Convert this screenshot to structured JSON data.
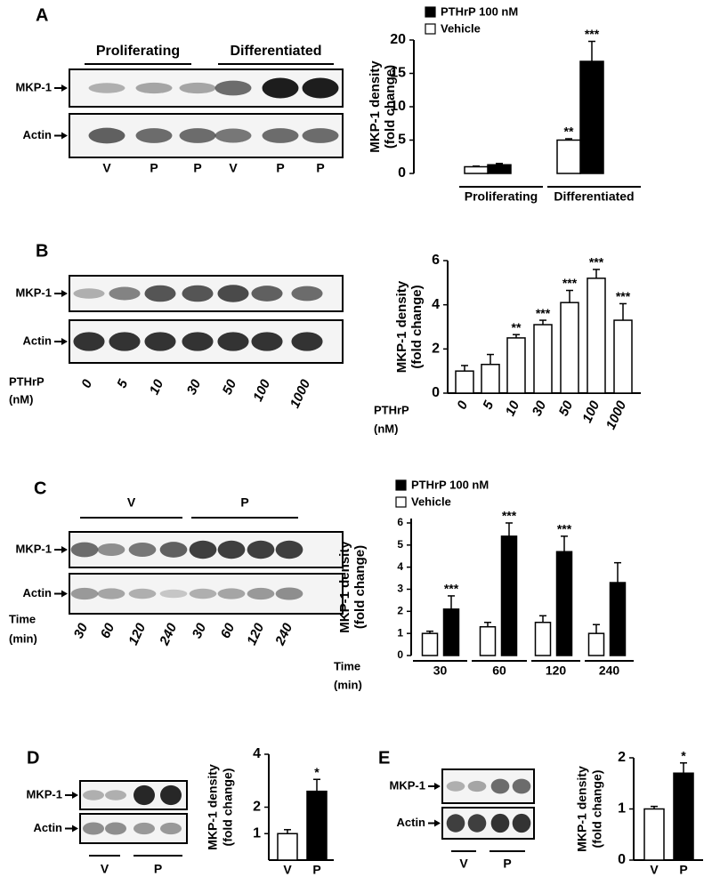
{
  "blots": [
    {
      "panel": "A",
      "groups": [
        "Proliferating",
        "Differentiated"
      ],
      "rows": [
        "MKP-1",
        "Actin"
      ],
      "lanes": [
        "V",
        "P",
        "P",
        "V",
        "P",
        "P"
      ]
    },
    {
      "panel": "B",
      "rows": [
        "MKP-1",
        "Actin"
      ],
      "lane_title": [
        "PTHrP",
        "(nM)"
      ],
      "lanes": [
        "0",
        "5",
        "10",
        "30",
        "50",
        "100",
        "1000"
      ]
    },
    {
      "panel": "C",
      "groups": [
        "V",
        "P"
      ],
      "rows": [
        "MKP-1",
        "Actin"
      ],
      "lane_title": [
        "Time",
        "(min)"
      ],
      "lanes": [
        "30",
        "60",
        "120",
        "240",
        "30",
        "60",
        "120",
        "240"
      ]
    },
    {
      "panel": "D",
      "groups": [
        "V",
        "P"
      ],
      "rows": [
        "MKP-1",
        "Actin"
      ]
    },
    {
      "panel": "E",
      "groups": [
        "V",
        "P"
      ],
      "rows": [
        "MKP-1",
        "Actin"
      ]
    }
  ],
  "chart_data": [
    {
      "type": "bar",
      "ylabel": [
        "MKP-1 density",
        "(fold change)"
      ],
      "categories": [
        "Proliferating",
        "Differentiated"
      ],
      "series": [
        {
          "name": "PTHrP 100 nM",
          "color": "#000000",
          "values": [
            1.3,
            16.8
          ],
          "errors": [
            0.2,
            3.0
          ],
          "annotations": [
            null,
            "***"
          ]
        },
        {
          "name": "Vehicle",
          "color": "#ffffff",
          "values": [
            1.0,
            5.0
          ],
          "errors": [
            0.1,
            0.2
          ],
          "annotations": [
            null,
            "**"
          ]
        }
      ],
      "ylim": [
        0,
        20
      ],
      "yticks": [
        0,
        5,
        10,
        15,
        20
      ]
    },
    {
      "type": "bar",
      "ylabel": [
        "MKP-1 density",
        "(fold change)"
      ],
      "xlabel": [
        "PTHrP",
        "(nM)"
      ],
      "categories": [
        "0",
        "5",
        "10",
        "30",
        "50",
        "100",
        "1000"
      ],
      "values": [
        1.0,
        1.3,
        2.5,
        3.1,
        4.1,
        5.2,
        3.3
      ],
      "errors": [
        0.25,
        0.45,
        0.15,
        0.2,
        0.55,
        0.4,
        0.75
      ],
      "annotations": [
        null,
        null,
        "**",
        "***",
        "***",
        "***",
        "***"
      ],
      "color": "#ffffff",
      "ylim": [
        0,
        6
      ],
      "yticks": [
        0,
        2,
        4,
        6
      ]
    },
    {
      "type": "bar",
      "ylabel": [
        "MKP-1 density",
        "(fold change)"
      ],
      "xlabel": [
        "Time",
        "(min)"
      ],
      "categories": [
        "30",
        "60",
        "120",
        "240"
      ],
      "series": [
        {
          "name": "PTHrP 100 nM",
          "color": "#000000",
          "values": [
            2.1,
            5.4,
            4.7,
            3.3
          ],
          "errors": [
            0.6,
            0.6,
            0.7,
            0.9
          ],
          "annotations": [
            "***",
            "***",
            "***",
            null
          ]
        },
        {
          "name": "Vehicle",
          "color": "#ffffff",
          "values": [
            1.0,
            1.3,
            1.5,
            1.0
          ],
          "errors": [
            0.1,
            0.2,
            0.3,
            0.4
          ],
          "annotations": [
            null,
            null,
            null,
            null
          ]
        }
      ],
      "ylim": [
        0,
        6.2
      ],
      "yticks": [
        0,
        1,
        2,
        3,
        4,
        5,
        6
      ]
    },
    {
      "type": "bar",
      "ylabel": [
        "MKP-1 density",
        "(fold change)"
      ],
      "categories": [
        "V",
        "P"
      ],
      "values": [
        1.0,
        2.6
      ],
      "errors": [
        0.15,
        0.45
      ],
      "annotations": [
        null,
        "*"
      ],
      "colors": [
        "#ffffff",
        "#000000"
      ],
      "ylim": [
        0,
        4
      ],
      "yticks": [
        1,
        2,
        4
      ]
    },
    {
      "type": "bar",
      "ylabel": [
        "MKP-1 density",
        "(fold change)"
      ],
      "categories": [
        "V",
        "P"
      ],
      "values": [
        1.0,
        1.7
      ],
      "errors": [
        0.05,
        0.2
      ],
      "annotations": [
        null,
        "*"
      ],
      "colors": [
        "#ffffff",
        "#000000"
      ],
      "ylim": [
        0,
        2
      ],
      "yticks": [
        0,
        1,
        2
      ]
    }
  ]
}
